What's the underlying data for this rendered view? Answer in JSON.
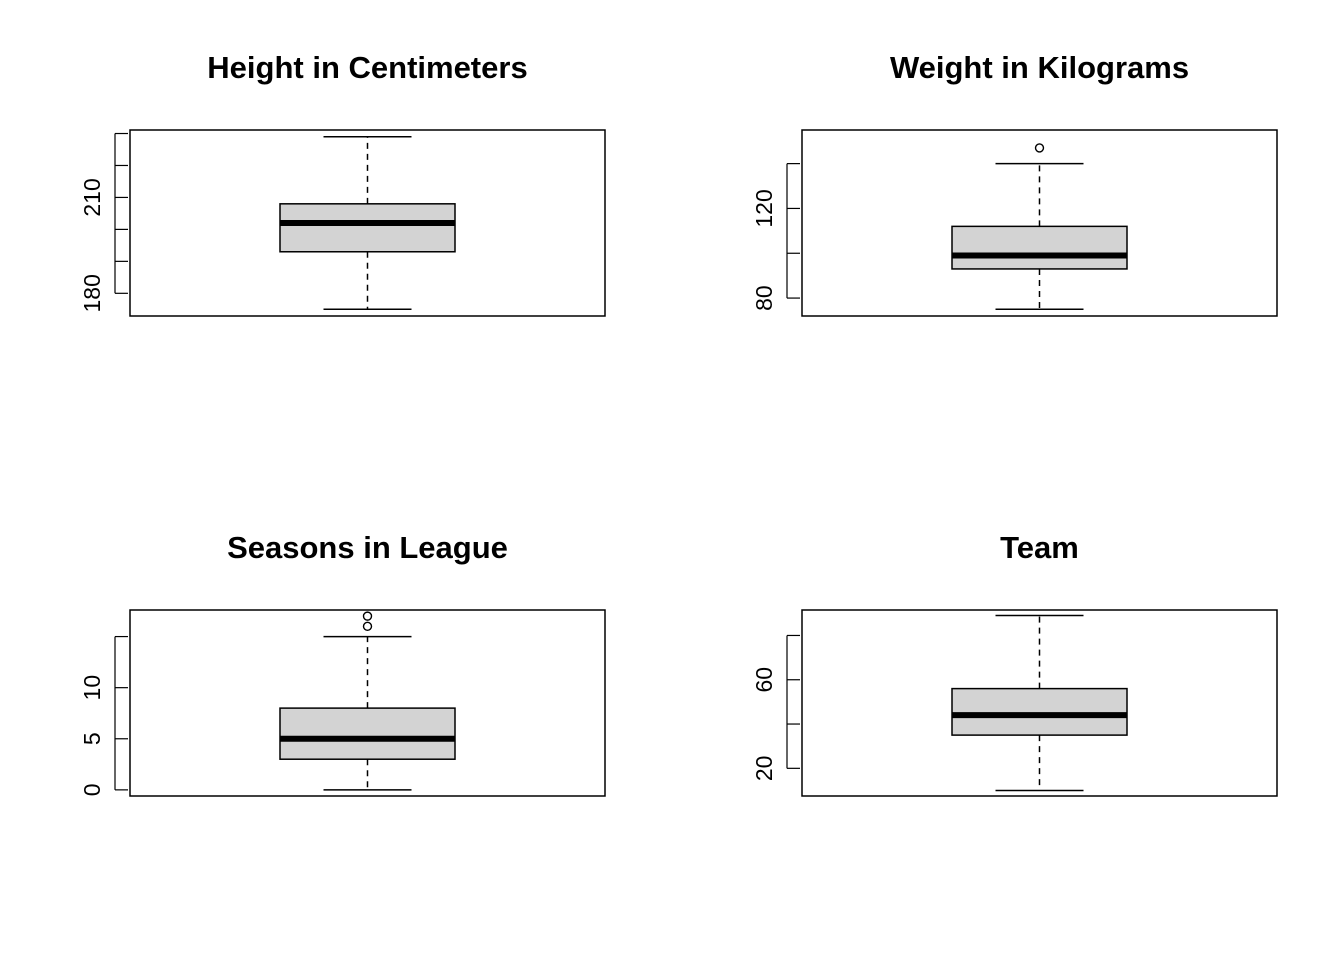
{
  "chart_data": [
    {
      "type": "boxplot",
      "title": "Height in Centimeters",
      "ylim": [
        172.9,
        231.1
      ],
      "yticks": [
        180,
        190,
        200,
        210,
        220,
        230
      ],
      "ytick_labels": [
        "180",
        "",
        "",
        "210",
        "",
        ""
      ],
      "box": {
        "whisker_low": 175,
        "q1": 193,
        "median": 202,
        "q3": 208,
        "whisker_high": 229
      },
      "outliers": []
    },
    {
      "type": "boxplot",
      "title": "Weight in Kilograms",
      "ylim": [
        72.0,
        155.0
      ],
      "yticks": [
        80,
        100,
        120,
        140
      ],
      "ytick_labels": [
        "80",
        "",
        "120",
        ""
      ],
      "box": {
        "whisker_low": 75,
        "q1": 93,
        "median": 99,
        "q3": 112,
        "whisker_high": 140
      },
      "outliers": [
        147
      ]
    },
    {
      "type": "boxplot",
      "title": "Seasons in League",
      "ylim": [
        -0.6,
        17.6
      ],
      "yticks": [
        0,
        5,
        10,
        15
      ],
      "ytick_labels": [
        "0",
        "5",
        "10",
        ""
      ],
      "box": {
        "whisker_low": 0,
        "q1": 3,
        "median": 5,
        "q3": 8,
        "whisker_high": 15
      },
      "outliers": [
        16,
        17
      ]
    },
    {
      "type": "boxplot",
      "title": "Team",
      "ylim": [
        7.5,
        91.5
      ],
      "yticks": [
        20,
        40,
        60,
        80
      ],
      "ytick_labels": [
        "20",
        "",
        "60",
        ""
      ],
      "box": {
        "whisker_low": 10,
        "q1": 35,
        "median": 44,
        "q3": 56,
        "whisker_high": 89
      },
      "outliers": []
    }
  ]
}
